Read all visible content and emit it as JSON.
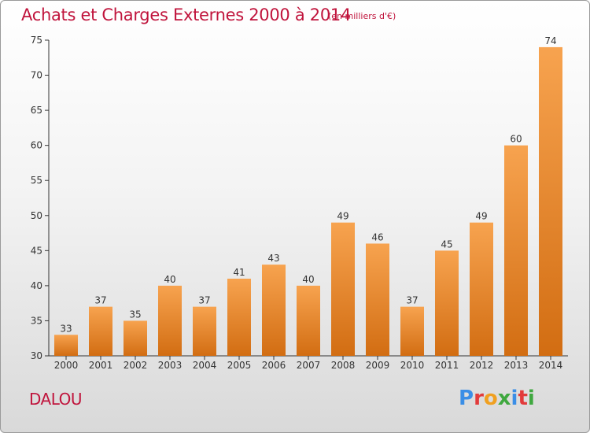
{
  "header": {
    "title": "Achats et Charges Externes 2000 à 2014",
    "subtitle": "(en milliers d'€)"
  },
  "footer": {
    "commune": "DALOU",
    "logo_text": "Proxiti"
  },
  "colors": {
    "title": "#c0143c",
    "bar_light": "#f7a34f",
    "bar_dark": "#d26d12",
    "logo": [
      "#3a8ee6",
      "#e23b3b",
      "#f0a020",
      "#3fa83f",
      "#3a8ee6",
      "#e23b3b",
      "#3fa83f"
    ]
  },
  "chart_data": {
    "type": "bar",
    "title": "Achats et Charges Externes 2000 à 2014",
    "subtitle": "(en milliers d'€)",
    "categories": [
      "2000",
      "2001",
      "2002",
      "2003",
      "2004",
      "2005",
      "2006",
      "2007",
      "2008",
      "2009",
      "2010",
      "2011",
      "2012",
      "2013",
      "2014"
    ],
    "values": [
      33,
      37,
      35,
      40,
      37,
      41,
      43,
      40,
      49,
      46,
      37,
      45,
      49,
      60,
      74
    ],
    "ylim": [
      30,
      75
    ],
    "yticks": [
      30,
      35,
      40,
      45,
      50,
      55,
      60,
      65,
      70,
      75
    ],
    "xlabel": "",
    "ylabel": "",
    "grid": false,
    "data_labels": true
  }
}
